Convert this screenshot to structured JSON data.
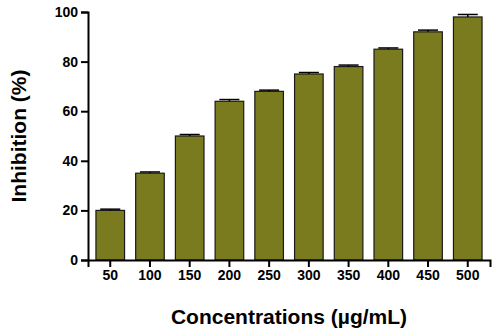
{
  "chart_data": {
    "type": "bar",
    "x_label": "Concentrations (µg/mL)",
    "y_label": "Inhibition (%)",
    "categories": [
      "50",
      "100",
      "150",
      "200",
      "250",
      "300",
      "350",
      "400",
      "450",
      "500"
    ],
    "values": [
      20,
      35,
      50,
      64,
      68,
      75,
      78,
      85,
      92,
      98
    ],
    "errors": [
      0.5,
      0.5,
      0.6,
      0.7,
      0.5,
      0.6,
      0.6,
      0.5,
      0.7,
      1.0
    ],
    "color": "#7a7a1e",
    "ylim": [
      0,
      100
    ],
    "yticks": [
      0,
      20,
      40,
      60,
      80,
      100
    ],
    "grid": false
  }
}
